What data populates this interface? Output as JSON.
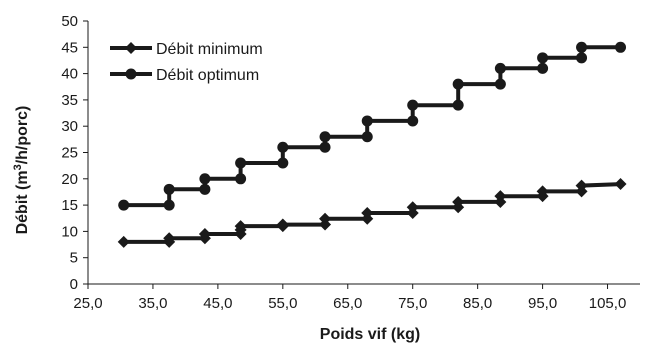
{
  "chart_data": {
    "type": "line",
    "title": "",
    "xlabel": "Poids vif (kg)",
    "ylabel_parts": [
      "Débit (m",
      "3",
      "/h/porc)"
    ],
    "xlim": [
      25,
      110
    ],
    "ylim": [
      0,
      50
    ],
    "x_ticks": [
      25,
      35,
      45,
      55,
      65,
      75,
      85,
      95,
      105
    ],
    "x_tick_labels": [
      "25,0",
      "35,0",
      "45,0",
      "55,0",
      "65,0",
      "75,0",
      "85,0",
      "95,0",
      "105,0"
    ],
    "y_ticks": [
      0,
      5,
      10,
      15,
      20,
      25,
      30,
      35,
      40,
      45,
      50
    ],
    "y_tick_labels": [
      "0",
      "5",
      "10",
      "15",
      "20",
      "25",
      "30",
      "35",
      "40",
      "45",
      "50"
    ],
    "legend_position": "top-left",
    "series": [
      {
        "name": "Débit minimum",
        "marker": "diamond",
        "color": "#1a1a1a",
        "points": [
          [
            30.5,
            8
          ],
          [
            37.5,
            8
          ],
          [
            37.5,
            8.7
          ],
          [
            43,
            8.7
          ],
          [
            43,
            9.5
          ],
          [
            48.5,
            9.5
          ],
          [
            48.5,
            10.3
          ],
          [
            48.5,
            11
          ],
          [
            55,
            11
          ],
          [
            55,
            11.3
          ],
          [
            61.5,
            11.3
          ],
          [
            61.5,
            12.4
          ],
          [
            68,
            12.4
          ],
          [
            68,
            13.5
          ],
          [
            75,
            13.5
          ],
          [
            75,
            14.6
          ],
          [
            82,
            14.6
          ],
          [
            82,
            15.6
          ],
          [
            88.5,
            15.6
          ],
          [
            88.5,
            16.7
          ],
          [
            95,
            16.7
          ],
          [
            95,
            17.6
          ],
          [
            101,
            17.6
          ],
          [
            101,
            18.7
          ],
          [
            107,
            19
          ]
        ]
      },
      {
        "name": "Débit optimum",
        "marker": "circle",
        "color": "#1a1a1a",
        "points": [
          [
            30.5,
            15
          ],
          [
            37.5,
            15
          ],
          [
            37.5,
            18
          ],
          [
            43,
            18
          ],
          [
            43,
            20
          ],
          [
            48.5,
            20
          ],
          [
            48.5,
            23
          ],
          [
            55,
            23
          ],
          [
            55,
            26
          ],
          [
            61.5,
            26
          ],
          [
            61.5,
            28
          ],
          [
            68,
            28
          ],
          [
            68,
            31
          ],
          [
            75,
            31
          ],
          [
            75,
            34
          ],
          [
            82,
            34
          ],
          [
            82,
            38
          ],
          [
            88.5,
            38
          ],
          [
            88.5,
            41
          ],
          [
            95,
            41
          ],
          [
            95,
            43
          ],
          [
            101,
            43
          ],
          [
            101,
            45
          ],
          [
            107,
            45
          ]
        ]
      }
    ]
  }
}
